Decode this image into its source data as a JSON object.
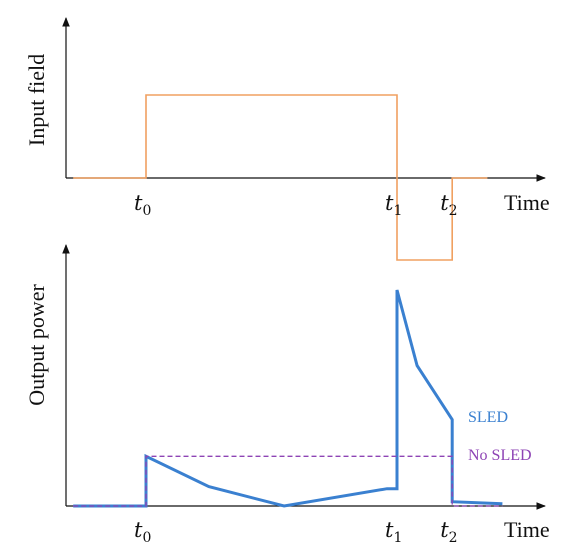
{
  "chart_data": [
    {
      "type": "line",
      "ylabel": "Input field",
      "xlabel": "Time",
      "ticks": [
        {
          "base": "t",
          "sub": "0",
          "x": 0.0
        },
        {
          "base": "t",
          "sub": "1",
          "x": 1.0
        },
        {
          "base": "t",
          "sub": "2",
          "x": 1.22
        }
      ],
      "xlim": [
        -0.29,
        1.33
      ],
      "ylim": [
        -1.0,
        1.0
      ],
      "series": [
        {
          "color": "#F0A060",
          "points": [
            [
              -0.29,
              0
            ],
            [
              0.0,
              0
            ],
            [
              0.0,
              1.0
            ],
            [
              1.0,
              1.0
            ],
            [
              1.0,
              -0.97
            ],
            [
              1.22,
              -0.97
            ],
            [
              1.22,
              0
            ],
            [
              1.36,
              0
            ]
          ]
        }
      ]
    },
    {
      "type": "line",
      "ylabel": "Output power",
      "xlabel": "Time",
      "ticks": [
        {
          "base": "t",
          "sub": "0",
          "x": 0.0
        },
        {
          "base": "t",
          "sub": "1",
          "x": 1.0
        },
        {
          "base": "t",
          "sub": "2",
          "x": 1.22
        }
      ],
      "xlim": [
        -0.29,
        1.33
      ],
      "ylim": [
        0,
        1.0
      ],
      "series": [
        {
          "name": "SLED",
          "color": "#3A80D0",
          "points": [
            [
              -0.29,
              0
            ],
            [
              0.0,
              0
            ],
            [
              0.0,
              0.23
            ],
            [
              0.25,
              0.09
            ],
            [
              0.55,
              0
            ],
            [
              0.96,
              0.08
            ],
            [
              1.0,
              0.08
            ],
            [
              1.0,
              1.0
            ],
            [
              1.08,
              0.65
            ],
            [
              1.22,
              0.4
            ],
            [
              1.22,
              0.02
            ],
            [
              1.42,
              0.01
            ]
          ],
          "stroke_width": 3
        },
        {
          "name": "No SLED",
          "color": "#8E44B5",
          "dashed": true,
          "points": [
            [
              -0.29,
              0
            ],
            [
              0.0,
              0
            ],
            [
              0.0,
              0.23
            ],
            [
              1.22,
              0.23
            ],
            [
              1.22,
              0
            ],
            [
              1.42,
              0
            ]
          ],
          "stroke_width": 1.3
        }
      ]
    }
  ]
}
